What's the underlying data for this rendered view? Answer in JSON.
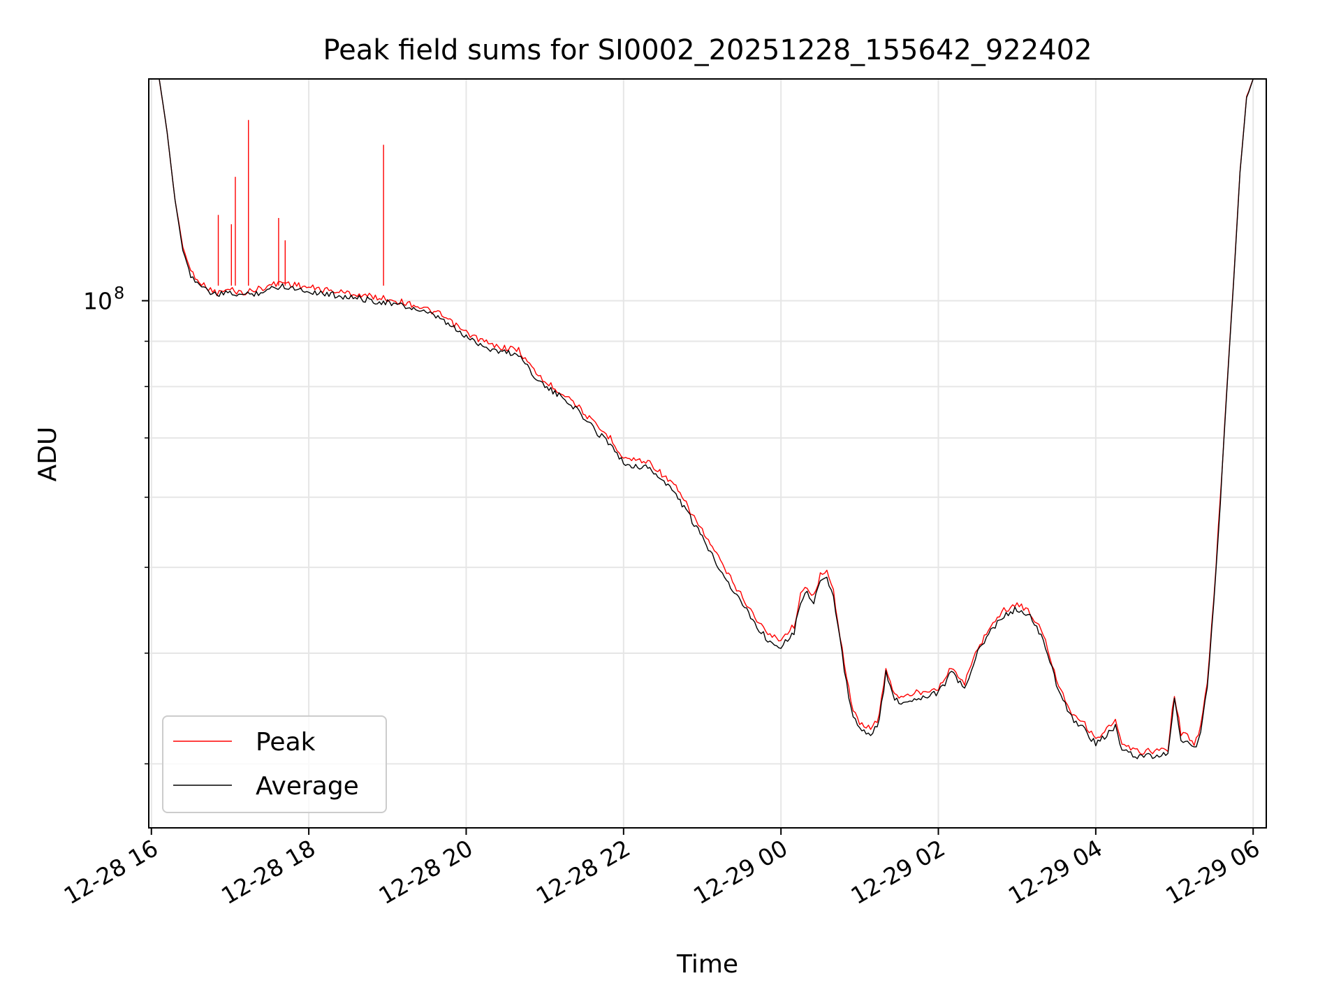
{
  "chart_data": {
    "type": "line",
    "title": "Peak field sums for SI0002_20251228_155642_922402",
    "xlabel": "Time",
    "ylabel": "ADU",
    "y_scale": "log",
    "grid": true,
    "legend_position": "lower-left",
    "x_ticks": [
      "12-28 16",
      "12-28 18",
      "12-28 20",
      "12-28 22",
      "12-29 00",
      "12-29 02",
      "12-29 04",
      "12-29 06"
    ],
    "x_tick_times": [
      "2025-12-28 16:00",
      "2025-12-28 18:00",
      "2025-12-28 20:00",
      "2025-12-28 22:00",
      "2025-12-29 00:00",
      "2025-12-29 02:00",
      "2025-12-29 04:00",
      "2025-12-29 06:00"
    ],
    "x_range": [
      "2025-12-28 15:58",
      "2025-12-29 06:10"
    ],
    "y_range": [
      25400000,
      178000000
    ],
    "y_major_tick": {
      "value": 100000000,
      "label": "10",
      "exponent": "8"
    },
    "y_minor_ticks": [
      30000000,
      40000000,
      50000000,
      60000000,
      70000000,
      80000000,
      90000000,
      200000000
    ],
    "series": [
      {
        "name": "Peak",
        "color": "#ff0000",
        "points": [
          [
            "2025-12-28 16:06",
            178000000
          ],
          [
            "2025-12-28 16:12",
            155000000
          ],
          [
            "2025-12-28 16:18",
            130000000
          ],
          [
            "2025-12-28 16:24",
            115000000
          ],
          [
            "2025-12-28 16:30",
            108000000
          ],
          [
            "2025-12-28 16:40",
            104000000
          ],
          [
            "2025-12-28 16:50",
            102000000
          ],
          [
            "2025-12-28 17:00",
            103000000
          ],
          [
            "2025-12-28 17:10",
            102000000
          ],
          [
            "2025-12-28 17:20",
            103000000
          ],
          [
            "2025-12-28 17:30",
            104000000
          ],
          [
            "2025-12-28 17:40",
            105000000
          ],
          [
            "2025-12-28 18:00",
            103500000
          ],
          [
            "2025-12-28 18:20",
            102500000
          ],
          [
            "2025-12-28 18:40",
            101500000
          ],
          [
            "2025-12-28 19:00",
            100500000
          ],
          [
            "2025-12-28 19:20",
            99000000
          ],
          [
            "2025-12-28 19:40",
            96500000
          ],
          [
            "2025-12-28 20:00",
            92000000
          ],
          [
            "2025-12-28 20:20",
            89000000
          ],
          [
            "2025-12-28 20:40",
            88000000
          ],
          [
            "2025-12-28 20:50",
            84000000
          ],
          [
            "2025-12-28 21:00",
            81000000
          ],
          [
            "2025-12-28 21:20",
            77500000
          ],
          [
            "2025-12-28 21:40",
            72000000
          ],
          [
            "2025-12-28 21:50",
            70000000
          ],
          [
            "2025-12-28 22:00",
            66500000
          ],
          [
            "2025-12-28 22:20",
            65700000
          ],
          [
            "2025-12-28 22:40",
            61500000
          ],
          [
            "2025-12-28 23:00",
            55000000
          ],
          [
            "2025-12-28 23:20",
            49000000
          ],
          [
            "2025-12-28 23:40",
            44000000
          ],
          [
            "2025-12-28 23:50",
            42000000
          ],
          [
            "2025-12-29 00:00",
            41500000
          ],
          [
            "2025-12-29 00:10",
            43000000
          ],
          [
            "2025-12-29 00:15",
            46500000
          ],
          [
            "2025-12-29 00:20",
            47500000
          ],
          [
            "2025-12-29 00:25",
            46500000
          ],
          [
            "2025-12-29 00:30",
            49000000
          ],
          [
            "2025-12-29 00:35",
            49300000
          ],
          [
            "2025-12-29 00:40",
            47000000
          ],
          [
            "2025-12-29 00:45",
            42000000
          ],
          [
            "2025-12-29 00:50",
            37500000
          ],
          [
            "2025-12-29 00:55",
            34500000
          ],
          [
            "2025-12-29 01:00",
            33200000
          ],
          [
            "2025-12-29 01:10",
            33000000
          ],
          [
            "2025-12-29 01:15",
            34000000
          ],
          [
            "2025-12-29 01:20",
            38500000
          ],
          [
            "2025-12-29 01:25",
            36500000
          ],
          [
            "2025-12-29 01:30",
            35500000
          ],
          [
            "2025-12-29 01:40",
            36000000
          ],
          [
            "2025-12-29 01:50",
            36300000
          ],
          [
            "2025-12-29 02:00",
            36600000
          ],
          [
            "2025-12-29 02:10",
            38500000
          ],
          [
            "2025-12-29 02:20",
            37000000
          ],
          [
            "2025-12-29 02:30",
            40500000
          ],
          [
            "2025-12-29 02:40",
            43000000
          ],
          [
            "2025-12-29 02:50",
            44700000
          ],
          [
            "2025-12-29 03:00",
            45500000
          ],
          [
            "2025-12-29 03:10",
            44500000
          ],
          [
            "2025-12-29 03:20",
            42000000
          ],
          [
            "2025-12-29 03:30",
            37500000
          ],
          [
            "2025-12-29 03:40",
            34500000
          ],
          [
            "2025-12-29 03:50",
            33500000
          ],
          [
            "2025-12-29 04:00",
            32000000
          ],
          [
            "2025-12-29 04:15",
            33500000
          ],
          [
            "2025-12-29 04:20",
            31500000
          ],
          [
            "2025-12-29 04:30",
            31000000
          ],
          [
            "2025-12-29 04:45",
            31000000
          ],
          [
            "2025-12-29 04:55",
            31200000
          ],
          [
            "2025-12-29 05:00",
            36000000
          ],
          [
            "2025-12-29 05:05",
            32500000
          ],
          [
            "2025-12-29 05:10",
            32200000
          ],
          [
            "2025-12-29 05:15",
            31500000
          ],
          [
            "2025-12-29 05:20",
            33000000
          ],
          [
            "2025-12-29 05:25",
            37000000
          ],
          [
            "2025-12-29 05:30",
            46000000
          ],
          [
            "2025-12-29 05:35",
            60000000
          ],
          [
            "2025-12-29 05:40",
            80000000
          ],
          [
            "2025-12-29 05:45",
            105000000
          ],
          [
            "2025-12-29 05:50",
            140000000
          ],
          [
            "2025-12-29 05:55",
            170000000
          ],
          [
            "2025-12-29 06:00",
            178000000
          ]
        ],
        "spikes": [
          [
            "2025-12-28 16:51",
            125000000
          ],
          [
            "2025-12-28 17:01",
            122000000
          ],
          [
            "2025-12-28 17:04",
            138000000
          ],
          [
            "2025-12-28 17:14",
            160000000
          ],
          [
            "2025-12-28 17:37",
            124000000
          ],
          [
            "2025-12-28 17:42",
            117000000
          ],
          [
            "2025-12-28 18:57",
            150000000
          ]
        ]
      },
      {
        "name": "Average",
        "color": "#000000",
        "points": [
          [
            "2025-12-28 16:06",
            178000000
          ],
          [
            "2025-12-28 16:12",
            155000000
          ],
          [
            "2025-12-28 16:18",
            130000000
          ],
          [
            "2025-12-28 16:24",
            114000000
          ],
          [
            "2025-12-28 16:30",
            107000000
          ],
          [
            "2025-12-28 16:40",
            103000000
          ],
          [
            "2025-12-28 16:50",
            101500000
          ],
          [
            "2025-12-28 17:00",
            102000000
          ],
          [
            "2025-12-28 17:10",
            101500000
          ],
          [
            "2025-12-28 17:20",
            102000000
          ],
          [
            "2025-12-28 17:30",
            103000000
          ],
          [
            "2025-12-28 17:40",
            104000000
          ],
          [
            "2025-12-28 18:00",
            102500000
          ],
          [
            "2025-12-28 18:20",
            101500000
          ],
          [
            "2025-12-28 18:40",
            100500000
          ],
          [
            "2025-12-28 19:00",
            99500000
          ],
          [
            "2025-12-28 19:20",
            98000000
          ],
          [
            "2025-12-28 19:40",
            95500000
          ],
          [
            "2025-12-28 20:00",
            91000000
          ],
          [
            "2025-12-28 20:20",
            88000000
          ],
          [
            "2025-12-28 20:40",
            87000000
          ],
          [
            "2025-12-28 20:50",
            83000000
          ],
          [
            "2025-12-28 21:00",
            80000000
          ],
          [
            "2025-12-28 21:20",
            76500000
          ],
          [
            "2025-12-28 21:40",
            71000000
          ],
          [
            "2025-12-28 21:50",
            69000000
          ],
          [
            "2025-12-28 22:00",
            65500000
          ],
          [
            "2025-12-28 22:20",
            64700000
          ],
          [
            "2025-12-28 22:40",
            60500000
          ],
          [
            "2025-12-28 23:00",
            54000000
          ],
          [
            "2025-12-28 23:20",
            48000000
          ],
          [
            "2025-12-28 23:40",
            43300000
          ],
          [
            "2025-12-28 23:50",
            41300000
          ],
          [
            "2025-12-29 00:00",
            40800000
          ],
          [
            "2025-12-29 00:10",
            42300000
          ],
          [
            "2025-12-29 00:15",
            45800000
          ],
          [
            "2025-12-29 00:20",
            46800000
          ],
          [
            "2025-12-29 00:25",
            45800000
          ],
          [
            "2025-12-29 00:30",
            48300000
          ],
          [
            "2025-12-29 00:35",
            48600000
          ],
          [
            "2025-12-29 00:40",
            46300000
          ],
          [
            "2025-12-29 00:45",
            41300000
          ],
          [
            "2025-12-29 00:50",
            36900000
          ],
          [
            "2025-12-29 00:55",
            34000000
          ],
          [
            "2025-12-29 01:00",
            32700000
          ],
          [
            "2025-12-29 01:10",
            32500000
          ],
          [
            "2025-12-29 01:15",
            33500000
          ],
          [
            "2025-12-29 01:20",
            38000000
          ],
          [
            "2025-12-29 01:25",
            36000000
          ],
          [
            "2025-12-29 01:30",
            35000000
          ],
          [
            "2025-12-29 01:40",
            35500000
          ],
          [
            "2025-12-29 01:50",
            35800000
          ],
          [
            "2025-12-29 02:00",
            36100000
          ],
          [
            "2025-12-29 02:10",
            38000000
          ],
          [
            "2025-12-29 02:20",
            36500000
          ],
          [
            "2025-12-29 02:30",
            40000000
          ],
          [
            "2025-12-29 02:40",
            42400000
          ],
          [
            "2025-12-29 02:50",
            44100000
          ],
          [
            "2025-12-29 03:00",
            44900000
          ],
          [
            "2025-12-29 03:10",
            43900000
          ],
          [
            "2025-12-29 03:20",
            41400000
          ],
          [
            "2025-12-29 03:30",
            37000000
          ],
          [
            "2025-12-29 03:40",
            34000000
          ],
          [
            "2025-12-29 03:50",
            33000000
          ],
          [
            "2025-12-29 04:00",
            31600000
          ],
          [
            "2025-12-29 04:15",
            33000000
          ],
          [
            "2025-12-29 04:20",
            31100000
          ],
          [
            "2025-12-29 04:30",
            30600000
          ],
          [
            "2025-12-29 04:45",
            30600000
          ],
          [
            "2025-12-29 04:55",
            30800000
          ],
          [
            "2025-12-29 05:00",
            35500000
          ],
          [
            "2025-12-29 05:05",
            32000000
          ],
          [
            "2025-12-29 05:10",
            31800000
          ],
          [
            "2025-12-29 05:15",
            31100000
          ],
          [
            "2025-12-29 05:20",
            32600000
          ],
          [
            "2025-12-29 05:25",
            36500000
          ],
          [
            "2025-12-29 05:30",
            45500000
          ],
          [
            "2025-12-29 05:35",
            59500000
          ],
          [
            "2025-12-29 05:40",
            79500000
          ],
          [
            "2025-12-29 05:45",
            104500000
          ],
          [
            "2025-12-29 05:50",
            139500000
          ],
          [
            "2025-12-29 05:55",
            169500000
          ],
          [
            "2025-12-29 06:00",
            178000000
          ]
        ]
      }
    ]
  }
}
